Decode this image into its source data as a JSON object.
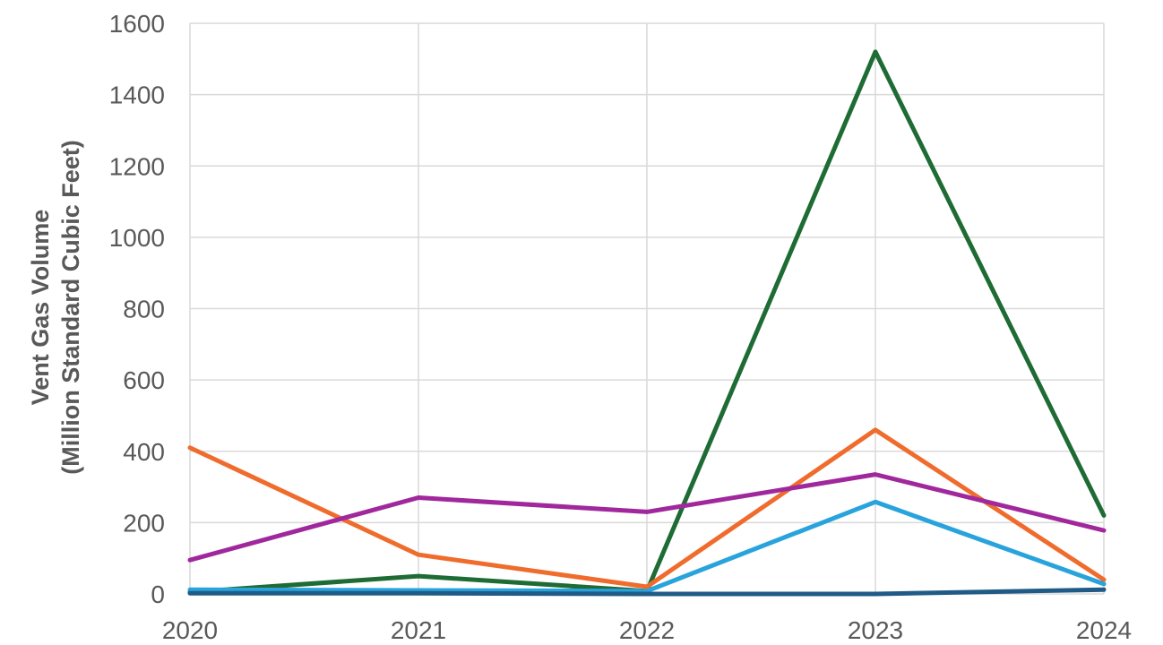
{
  "chart_data": {
    "type": "line",
    "title": "",
    "xlabel": "",
    "ylabel": "Vent Gas Volume",
    "ylabel_line2": "(Million Standard Cubic Feet)",
    "categories": [
      "2020",
      "2021",
      "2022",
      "2023",
      "2024"
    ],
    "y_ticks": [
      "0",
      "200",
      "400",
      "600",
      "800",
      "1000",
      "1200",
      "1400",
      "1600"
    ],
    "ylim": [
      0,
      1600
    ],
    "grid": true,
    "legend": "none",
    "series": [
      {
        "color": "#1e6b34",
        "values": [
          5,
          50,
          8,
          1520,
          220
        ]
      },
      {
        "color": "#ef6c2d",
        "values": [
          410,
          110,
          20,
          460,
          40
        ]
      },
      {
        "color": "#a0289c",
        "values": [
          95,
          270,
          230,
          335,
          178
        ]
      },
      {
        "color": "#29a3dc",
        "values": [
          12,
          10,
          8,
          258,
          28
        ]
      },
      {
        "color": "#1f5b86",
        "values": [
          2,
          2,
          0,
          0,
          12
        ]
      }
    ]
  }
}
